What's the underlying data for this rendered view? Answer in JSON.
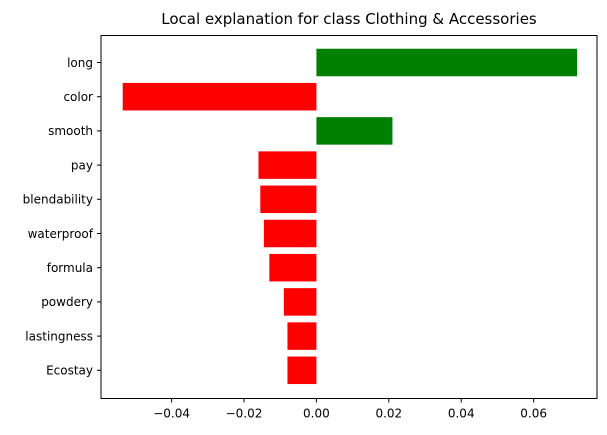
{
  "chart_data": {
    "type": "bar",
    "orientation": "horizontal",
    "title": "Local explanation for class Clothing & Accessories",
    "xlabel": "",
    "ylabel": "",
    "categories": [
      "long",
      "color",
      "smooth",
      "pay",
      "blendability",
      "waterproof",
      "formula",
      "powdery",
      "lastingness",
      "Ecostay"
    ],
    "values": [
      0.072,
      -0.0535,
      0.021,
      -0.016,
      -0.0155,
      -0.0145,
      -0.013,
      -0.009,
      -0.008,
      -0.008
    ],
    "xlim": [
      -0.0595,
      0.0775
    ],
    "xticks": [
      -0.04,
      -0.02,
      0.0,
      0.02,
      0.04,
      0.06
    ],
    "xtick_labels": [
      "−0.04",
      "−0.02",
      "0.00",
      "0.02",
      "0.04",
      "0.06"
    ],
    "grid": false,
    "legend": "none",
    "colors": {
      "positive": "#008000",
      "negative": "#ff0000",
      "axis": "#000000"
    }
  }
}
